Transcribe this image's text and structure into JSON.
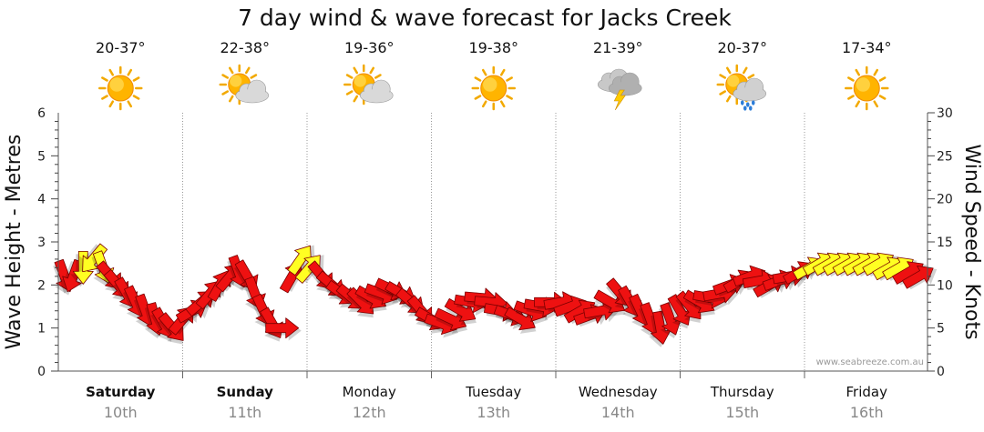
{
  "chart_data": {
    "type": "line",
    "title": "7 day wind & wave forecast for Jacks Creek",
    "ylabel": "Wave Height - Metres",
    "ylabel_right": "Wind Speed - Knots",
    "ylim": [
      0,
      6
    ],
    "ylim_right": [
      0,
      30
    ],
    "yticks": [
      "0",
      "1",
      "2",
      "3",
      "4",
      "5",
      "6"
    ],
    "yticks_right": [
      "0",
      "5",
      "10",
      "15",
      "20",
      "25",
      "30"
    ],
    "watermark": "www.seabreeze.com.au",
    "days": [
      {
        "name": "Saturday",
        "date": "10th",
        "temp": "20-37°",
        "icon": "sun-icon",
        "bold": true
      },
      {
        "name": "Sunday",
        "date": "11th",
        "temp": "22-38°",
        "icon": "partly-cloudy-icon",
        "bold": true
      },
      {
        "name": "Monday",
        "date": "12th",
        "temp": "19-36°",
        "icon": "partly-cloudy-icon",
        "bold": false
      },
      {
        "name": "Tuesday",
        "date": "13th",
        "temp": "19-38°",
        "icon": "sun-icon",
        "bold": false
      },
      {
        "name": "Wednesday",
        "date": "14th",
        "temp": "21-39°",
        "icon": "storm-icon",
        "bold": false
      },
      {
        "name": "Thursday",
        "date": "15th",
        "temp": "20-37°",
        "icon": "sun-shower-icon",
        "bold": false
      },
      {
        "name": "Friday",
        "date": "16th",
        "temp": "17-34°",
        "icon": "sun-icon",
        "bold": false
      }
    ],
    "series": [
      {
        "name": "Wind (knots) with direction arrows",
        "x_days": [
          0.05,
          0.12,
          0.2,
          0.28,
          0.36,
          0.42,
          0.48,
          0.55,
          0.62,
          0.7,
          0.78,
          0.85,
          0.92,
          1.0,
          1.08,
          1.15,
          1.22,
          1.3,
          1.38,
          1.45,
          1.52,
          1.58,
          1.65,
          1.72,
          1.8,
          1.88,
          1.95,
          2.02,
          2.12,
          2.2,
          2.28,
          2.36,
          2.44,
          2.52,
          2.6,
          2.68,
          2.76,
          2.84,
          2.92,
          3.0,
          3.08,
          3.16,
          3.24,
          3.32,
          3.4,
          3.48,
          3.56,
          3.64,
          3.72,
          3.8,
          3.88,
          3.96,
          4.04,
          4.12,
          4.2,
          4.28,
          4.36,
          4.44,
          4.52,
          4.6,
          4.68,
          4.76,
          4.84,
          4.92,
          5.0,
          5.08,
          5.16,
          5.24,
          5.32,
          5.4,
          5.48,
          5.56,
          5.64,
          5.72,
          5.8,
          5.88,
          5.96,
          6.04,
          6.12,
          6.2,
          6.28,
          6.36,
          6.44,
          6.52,
          6.6,
          6.68,
          6.76,
          6.84,
          6.92
        ],
        "knots": [
          11,
          11,
          12,
          13,
          12,
          11,
          10,
          9,
          8,
          7,
          6,
          5.5,
          5,
          6,
          7,
          8,
          9,
          10,
          11,
          11.5,
          11,
          9,
          7,
          5.5,
          5,
          11,
          13,
          12,
          11,
          10,
          9,
          8.5,
          8,
          8.5,
          9,
          9.5,
          9,
          8,
          7,
          6,
          5.5,
          6,
          7,
          8,
          8.5,
          8,
          7,
          6.5,
          6,
          7,
          7.5,
          8,
          8,
          7.5,
          7,
          6.5,
          7,
          8,
          9,
          8,
          7,
          6,
          5,
          6,
          7,
          7.5,
          8,
          8.5,
          9,
          10,
          10.5,
          11,
          10.5,
          10,
          10.5,
          11,
          11.5,
          12,
          12.5,
          12.5,
          12.5,
          12.5,
          12.5,
          12.5,
          12.5,
          12,
          12,
          11.5,
          11
        ],
        "direction_deg": [
          160,
          200,
          180,
          220,
          160,
          140,
          140,
          150,
          155,
          160,
          165,
          150,
          140,
          40,
          60,
          50,
          40,
          30,
          40,
          160,
          150,
          160,
          155,
          150,
          90,
          30,
          35,
          40,
          140,
          130,
          125,
          130,
          135,
          120,
          110,
          115,
          120,
          130,
          140,
          120,
          110,
          115,
          120,
          100,
          95,
          95,
          100,
          110,
          120,
          110,
          100,
          90,
          80,
          70,
          60,
          70,
          80,
          120,
          140,
          150,
          155,
          160,
          170,
          160,
          150,
          140,
          120,
          100,
          80,
          70,
          60,
          70,
          80,
          60,
          70,
          80,
          60,
          60,
          60,
          60,
          60,
          60,
          60,
          60,
          60,
          60,
          60,
          60,
          60
        ],
        "color_rule": {
          "yellow_from_knots": 12,
          "strong": "#ee1111",
          "yellow": "#ffff22"
        }
      }
    ]
  }
}
